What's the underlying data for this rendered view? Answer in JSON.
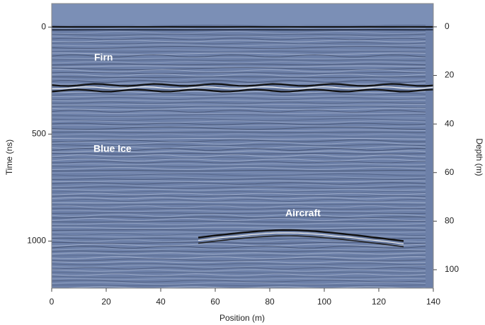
{
  "chart_data": {
    "type": "radargram",
    "xlabel": "Position (m)",
    "ylabel": "Time (ns)",
    "y2label": "Depth (m)",
    "xlim": [
      0,
      140
    ],
    "xticks": [
      0,
      20,
      40,
      60,
      80,
      100,
      120,
      140
    ],
    "ylim": [
      -110,
      1220
    ],
    "yticks": [
      0,
      500,
      1000
    ],
    "y_inverted": true,
    "y2lim": [
      -9.6,
      107.6
    ],
    "y2ticks": [
      0,
      20,
      40,
      60,
      80,
      100
    ],
    "y2_inverted": true,
    "color": "#6d80a8",
    "annotations": [
      "Firn",
      "Blue Ice",
      "Aircraft"
    ]
  }
}
